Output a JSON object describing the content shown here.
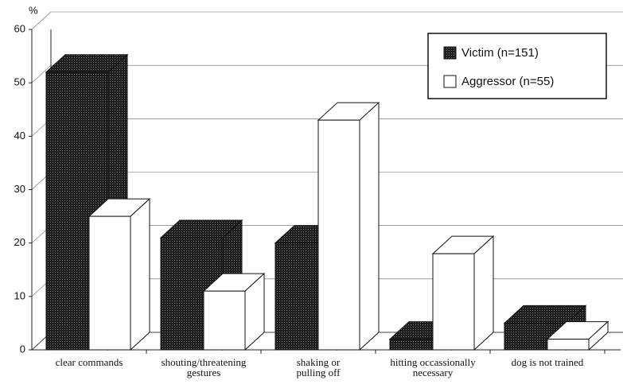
{
  "chart_data": {
    "type": "bar3d",
    "y_label": "%",
    "categories": [
      "clear commands",
      "shouting/threatening\ngestures",
      "shaking or\npulling off",
      "hitting occassionally\nnecessary",
      "dog is not trained"
    ],
    "series": [
      {
        "name": "Victim (n=151)",
        "color": "#1e1e1e",
        "values": [
          52,
          21,
          20,
          2,
          5
        ]
      },
      {
        "name": "Aggressor (n=55)",
        "color": "#ffffff",
        "values": [
          25,
          11,
          43,
          18,
          2
        ]
      }
    ],
    "ylim": [
      0,
      60
    ],
    "yticks": [
      0,
      10,
      20,
      30,
      40,
      50,
      60
    ],
    "grid": true,
    "legend": "top-right"
  }
}
